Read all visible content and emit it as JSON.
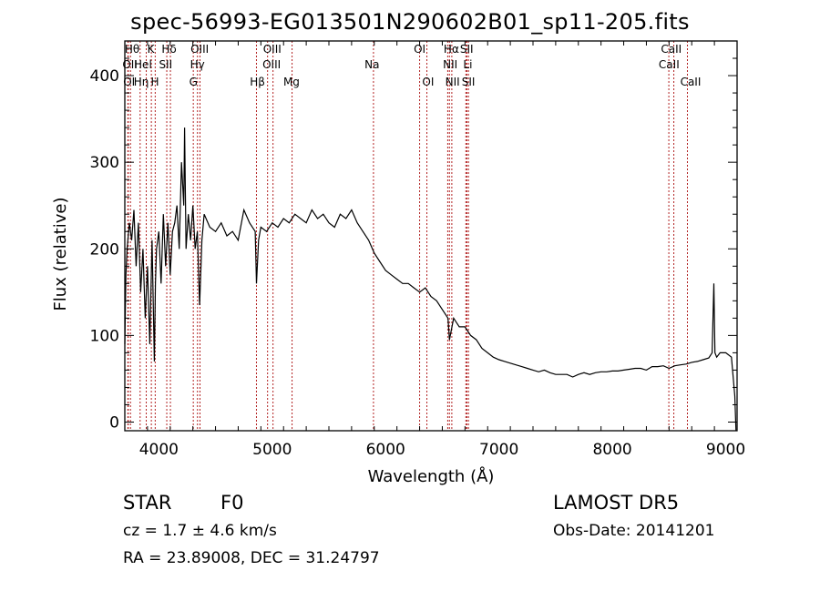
{
  "chart_data": {
    "type": "line",
    "title": "spec-56993-EG013501N290602B01_sp11-205.fits",
    "xlabel": "Wavelength (Å)",
    "ylabel": "Flux (relative)",
    "xlim": [
      3700,
      9100
    ],
    "ylim": [
      -10,
      440
    ],
    "x_ticks": [
      4000,
      5000,
      6000,
      7000,
      8000,
      9000
    ],
    "y_ticks": [
      0,
      100,
      200,
      300,
      400
    ],
    "grid": false,
    "series": [
      {
        "color": "#000000",
        "x": [
          3700,
          3710,
          3720,
          3740,
          3760,
          3780,
          3800,
          3820,
          3840,
          3860,
          3880,
          3900,
          3920,
          3940,
          3960,
          3970,
          3980,
          4000,
          4020,
          4040,
          4060,
          4080,
          4100,
          4120,
          4140,
          4160,
          4180,
          4200,
          4220,
          4227,
          4240,
          4260,
          4280,
          4300,
          4320,
          4340,
          4360,
          4380,
          4400,
          4450,
          4500,
          4550,
          4600,
          4650,
          4700,
          4750,
          4800,
          4850,
          4861,
          4880,
          4900,
          4950,
          5000,
          5050,
          5100,
          5150,
          5200,
          5250,
          5300,
          5350,
          5400,
          5450,
          5500,
          5550,
          5600,
          5650,
          5700,
          5750,
          5800,
          5850,
          5900,
          5950,
          6000,
          6050,
          6100,
          6150,
          6200,
          6250,
          6300,
          6350,
          6400,
          6450,
          6500,
          6550,
          6563,
          6600,
          6650,
          6700,
          6750,
          6800,
          6850,
          6900,
          6950,
          7000,
          7050,
          7100,
          7150,
          7200,
          7250,
          7300,
          7350,
          7400,
          7450,
          7500,
          7550,
          7600,
          7650,
          7700,
          7750,
          7800,
          7850,
          7900,
          7950,
          8000,
          8050,
          8100,
          8150,
          8200,
          8250,
          8300,
          8350,
          8400,
          8450,
          8500,
          8550,
          8600,
          8650,
          8700,
          8750,
          8800,
          8850,
          8880,
          8895,
          8905,
          8920,
          8950,
          9000,
          9050,
          9080,
          9090
        ],
        "y": [
          90,
          170,
          200,
          230,
          210,
          245,
          180,
          230,
          150,
          200,
          120,
          180,
          90,
          210,
          70,
          160,
          200,
          220,
          160,
          240,
          180,
          230,
          170,
          220,
          230,
          250,
          200,
          300,
          250,
          340,
          200,
          240,
          210,
          250,
          200,
          220,
          135,
          210,
          240,
          225,
          220,
          230,
          215,
          220,
          210,
          245,
          230,
          220,
          160,
          210,
          225,
          220,
          230,
          225,
          235,
          230,
          240,
          235,
          230,
          245,
          235,
          240,
          230,
          225,
          240,
          235,
          245,
          230,
          220,
          210,
          195,
          185,
          175,
          170,
          165,
          160,
          160,
          155,
          150,
          155,
          145,
          140,
          130,
          120,
          95,
          120,
          110,
          110,
          100,
          95,
          85,
          80,
          75,
          72,
          70,
          68,
          66,
          64,
          62,
          60,
          58,
          60,
          57,
          55,
          55,
          55,
          52,
          55,
          57,
          55,
          57,
          58,
          58,
          59,
          59,
          60,
          61,
          62,
          62,
          60,
          64,
          64,
          65,
          62,
          65,
          66,
          67,
          69,
          70,
          72,
          74,
          80,
          160,
          80,
          75,
          80,
          80,
          75,
          30,
          -10
        ]
      }
    ],
    "line_labels": [
      "Hθ",
      "OII",
      "OI",
      "K",
      "Hel",
      "Hη",
      "Hδ",
      "SII",
      "H",
      "OIII",
      "Hγ",
      "G",
      "Hβ",
      "OIII",
      "OIII",
      "Mg",
      "Na",
      "OI",
      "OI",
      "Hα",
      "NII",
      "NII",
      "SII",
      "Li",
      "SII",
      "CaII",
      "CaII",
      "CaII"
    ]
  },
  "footer": {
    "object_type": "STAR",
    "subclass": "F0",
    "survey": "LAMOST DR5",
    "redshift": "cz = 1.7 ± 4.6 km/s",
    "obs_date": "Obs-Date: 20141201",
    "coords": "RA =  23.89008, DEC =  31.24797"
  },
  "colors": {
    "spectrum": "#000000",
    "line_marker": "#b22222",
    "frame": "#000000"
  }
}
